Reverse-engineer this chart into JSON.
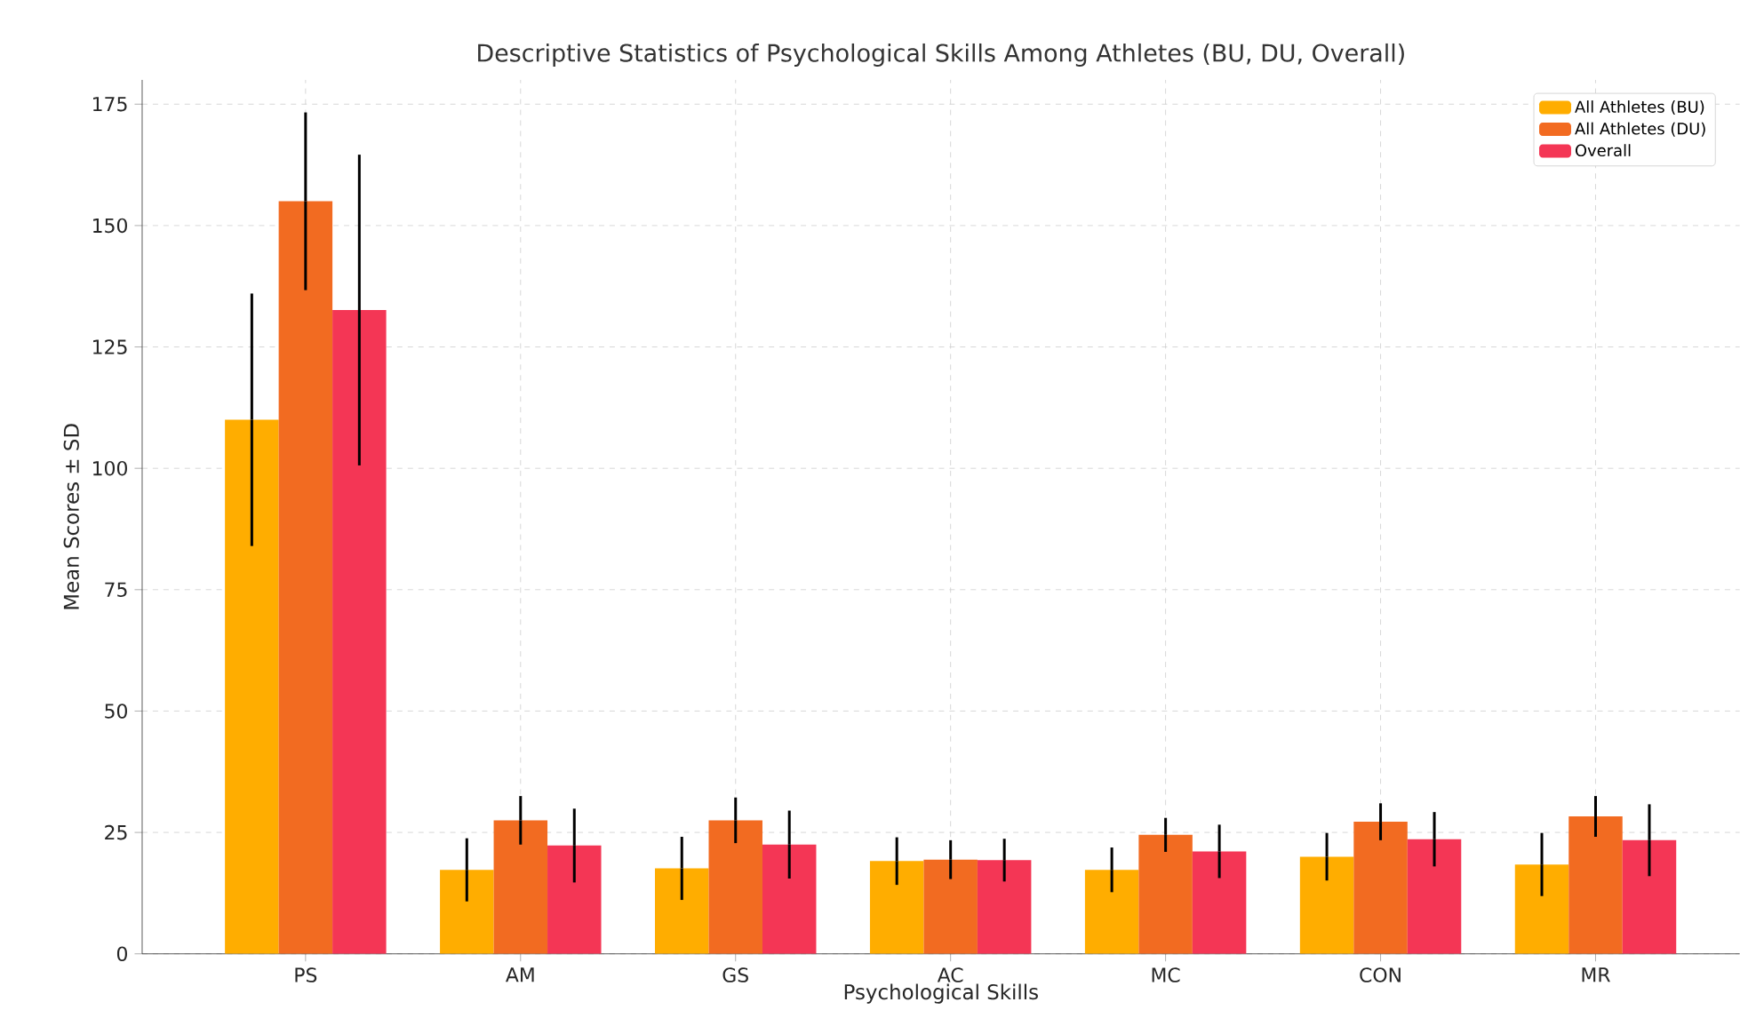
{
  "chart_data": {
    "type": "bar",
    "title": "Descriptive Statistics of Psychological Skills Among Athletes (BU, DU, Overall)",
    "xlabel": "Psychological Skills",
    "ylabel": "Mean Scores ± SD",
    "categories": [
      "PS",
      "AM",
      "GS",
      "AC",
      "MC",
      "CON",
      "MR"
    ],
    "series": [
      {
        "name": "All Athletes (BU)",
        "color": "#ffad00",
        "values": [
          110,
          17.3,
          17.6,
          19.1,
          17.3,
          20,
          18.4
        ],
        "errors": [
          26,
          6.5,
          6.5,
          4.9,
          4.6,
          4.9,
          6.5
        ]
      },
      {
        "name": "All Athletes (DU)",
        "color": "#f26b21",
        "values": [
          155,
          27.5,
          27.5,
          19.4,
          24.5,
          27.2,
          28.3
        ],
        "errors": [
          18.3,
          5,
          4.7,
          4,
          3.5,
          3.8,
          4.2
        ]
      },
      {
        "name": "Overall",
        "color": "#f43655",
        "values": [
          132.6,
          22.3,
          22.5,
          19.3,
          21.1,
          23.6,
          23.4
        ],
        "errors": [
          32,
          7.6,
          7,
          4.4,
          5.5,
          5.6,
          7.4
        ]
      }
    ],
    "ylim": [
      0,
      180
    ],
    "yticks": [
      0,
      25,
      50,
      75,
      100,
      125,
      150,
      175
    ],
    "grid": true,
    "legend": "top right"
  }
}
